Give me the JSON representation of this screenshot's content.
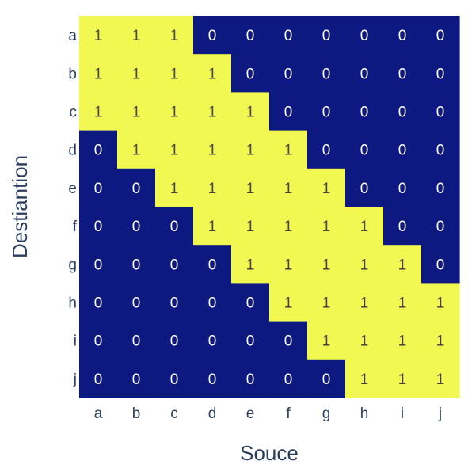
{
  "chart_data": {
    "type": "heatmap",
    "title": "",
    "xlabel": "Souce",
    "ylabel": "Destiantion",
    "x": [
      "a",
      "b",
      "c",
      "d",
      "e",
      "f",
      "g",
      "h",
      "i",
      "j"
    ],
    "y": [
      "a",
      "b",
      "c",
      "d",
      "e",
      "f",
      "g",
      "h",
      "i",
      "j"
    ],
    "z": [
      [
        1,
        1,
        1,
        0,
        0,
        0,
        0,
        0,
        0,
        0
      ],
      [
        1,
        1,
        1,
        1,
        0,
        0,
        0,
        0,
        0,
        0
      ],
      [
        1,
        1,
        1,
        1,
        1,
        0,
        0,
        0,
        0,
        0
      ],
      [
        0,
        1,
        1,
        1,
        1,
        1,
        0,
        0,
        0,
        0
      ],
      [
        0,
        0,
        1,
        1,
        1,
        1,
        1,
        0,
        0,
        0
      ],
      [
        0,
        0,
        0,
        1,
        1,
        1,
        1,
        1,
        0,
        0
      ],
      [
        0,
        0,
        0,
        0,
        1,
        1,
        1,
        1,
        1,
        0
      ],
      [
        0,
        0,
        0,
        0,
        0,
        1,
        1,
        1,
        1,
        1
      ],
      [
        0,
        0,
        0,
        0,
        0,
        0,
        1,
        1,
        1,
        1
      ],
      [
        0,
        0,
        0,
        0,
        0,
        0,
        0,
        1,
        1,
        1
      ]
    ],
    "show_cell_values": true,
    "colors": {
      "low": "#0d1880",
      "high": "#f1f852",
      "low_text": "#ffffff",
      "high_text": "#444444"
    },
    "legend": "none",
    "grid": false
  }
}
